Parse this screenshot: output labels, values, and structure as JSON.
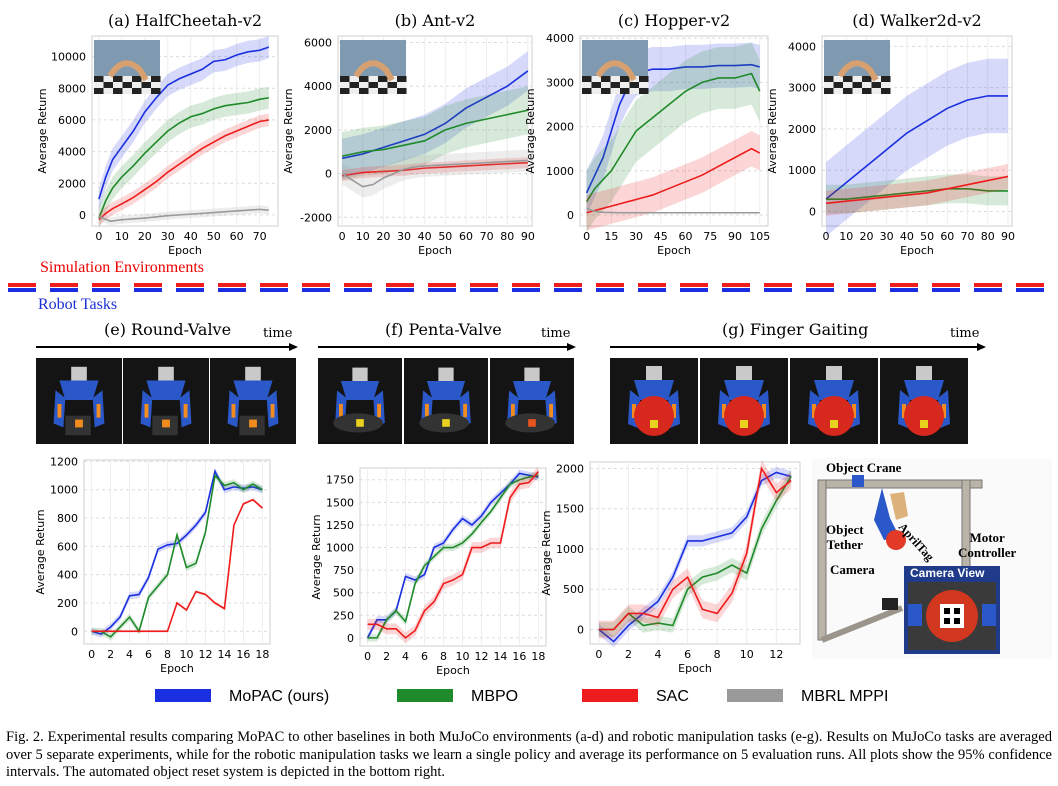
{
  "figure": {
    "section_sim": "Simulation Environments",
    "section_robot": "Robot Tasks",
    "time_label": "time",
    "legend": [
      {
        "name": "MoPAC (ours)",
        "color": "#1a2fe0"
      },
      {
        "name": "MBPO",
        "color": "#1f8a2a"
      },
      {
        "name": "SAC",
        "color": "#ee1c1c"
      },
      {
        "name": "MBRL MPPI",
        "color": "#9a9a9a"
      }
    ],
    "caption": "Fig. 2.   Experimental results comparing MoPAC to other baselines in both MuJoCo environments (a-d) and robotic manipulation tasks (e-g). Results on MuJoCo tasks are averaged over 5 separate experiments, while for the robotic manipulation tasks we learn a single policy and average its performance on 5 evaluation runs. All plots show the 95% confidence intervals. The automated object reset system is depicted in the bottom right.",
    "setup_labels": {
      "crane": "Object Crane",
      "tether": "Object\nTether",
      "apriltag": "AprilTag",
      "motor": "Motor\nController",
      "camera": "Camera",
      "view": "Camera View"
    }
  },
  "chart_data": [
    {
      "type": "line",
      "title": "(a) HalfCheetah-v2",
      "xlabel": "Epoch",
      "ylabel": "Average Return",
      "xlim": [
        -3,
        78
      ],
      "ylim": [
        -700,
        11300
      ],
      "xticks": [
        0,
        10,
        20,
        30,
        40,
        50,
        60,
        70
      ],
      "yticks": [
        0,
        2000,
        4000,
        6000,
        8000,
        10000
      ],
      "grid": true,
      "series": [
        {
          "name": "MoPAC (ours)",
          "x": [
            0,
            3,
            6,
            10,
            15,
            20,
            25,
            30,
            35,
            40,
            45,
            50,
            55,
            60,
            65,
            70,
            74
          ],
          "y": [
            1000,
            2400,
            3500,
            4300,
            5300,
            6500,
            7400,
            8200,
            8600,
            8900,
            9200,
            9700,
            9800,
            10100,
            10300,
            10400,
            10600
          ],
          "band": 700
        },
        {
          "name": "MBPO",
          "x": [
            0,
            3,
            6,
            10,
            15,
            20,
            25,
            30,
            35,
            40,
            45,
            50,
            55,
            60,
            65,
            70,
            74
          ],
          "y": [
            -200,
            900,
            1700,
            2400,
            3100,
            3900,
            4600,
            5300,
            5800,
            6200,
            6400,
            6700,
            6900,
            7000,
            7100,
            7300,
            7400
          ],
          "band": 700
        },
        {
          "name": "SAC",
          "x": [
            0,
            3,
            6,
            10,
            15,
            20,
            25,
            30,
            35,
            40,
            45,
            50,
            55,
            60,
            65,
            70,
            74
          ],
          "y": [
            -300,
            100,
            400,
            700,
            1100,
            1600,
            2100,
            2700,
            3200,
            3700,
            4200,
            4600,
            5000,
            5300,
            5600,
            5900,
            6000
          ],
          "band": 400
        },
        {
          "name": "MBRL MPPI",
          "x": [
            0,
            5,
            10,
            20,
            30,
            40,
            50,
            60,
            70,
            74
          ],
          "y": [
            -100,
            -400,
            -300,
            -200,
            -50,
            50,
            150,
            250,
            350,
            300
          ],
          "band": 250
        }
      ]
    },
    {
      "type": "line",
      "title": "(b) Ant-v2",
      "xlabel": "Epoch",
      "ylabel": "Average Return",
      "xlim": [
        -2,
        92
      ],
      "ylim": [
        -2400,
        6300
      ],
      "xticks": [
        0,
        10,
        20,
        30,
        40,
        50,
        60,
        70,
        80,
        90
      ],
      "yticks": [
        -2000,
        0,
        2000,
        4000,
        6000
      ],
      "grid": true,
      "series": [
        {
          "name": "MoPAC (ours)",
          "x": [
            0,
            10,
            20,
            30,
            40,
            50,
            60,
            70,
            80,
            90
          ],
          "y": [
            700,
            900,
            1200,
            1500,
            1800,
            2300,
            3000,
            3500,
            4000,
            4700
          ],
          "band": 900
        },
        {
          "name": "MBPO",
          "x": [
            0,
            10,
            20,
            30,
            40,
            50,
            60,
            70,
            80,
            90
          ],
          "y": [
            800,
            1000,
            1100,
            1300,
            1500,
            2000,
            2300,
            2500,
            2700,
            2900
          ],
          "band": 1100
        },
        {
          "name": "SAC",
          "x": [
            0,
            10,
            20,
            30,
            40,
            50,
            60,
            70,
            80,
            90
          ],
          "y": [
            -100,
            50,
            100,
            150,
            250,
            300,
            350,
            400,
            450,
            500
          ],
          "band": 250
        },
        {
          "name": "MBRL MPPI",
          "x": [
            0,
            5,
            10,
            15,
            20,
            25,
            30,
            35,
            40,
            50,
            60,
            70,
            80,
            90
          ],
          "y": [
            0,
            -300,
            -600,
            -500,
            -200,
            0,
            200,
            300,
            350,
            400,
            450,
            500,
            550,
            600
          ],
          "band": 500
        }
      ]
    },
    {
      "type": "line",
      "title": "(c) Hopper-v2",
      "xlabel": "Epoch",
      "ylabel": "Average Return",
      "xlim": [
        -4,
        110
      ],
      "ylim": [
        -250,
        4050
      ],
      "xticks": [
        0,
        15,
        30,
        45,
        60,
        75,
        90,
        105
      ],
      "yticks": [
        0,
        1000,
        2000,
        3000,
        4000
      ],
      "grid": true,
      "series": [
        {
          "name": "MoPAC (ours)",
          "x": [
            0,
            5,
            10,
            15,
            20,
            25,
            30,
            40,
            50,
            60,
            70,
            80,
            90,
            100,
            105
          ],
          "y": [
            500,
            900,
            1300,
            1900,
            2500,
            2900,
            3200,
            3300,
            3300,
            3350,
            3350,
            3380,
            3380,
            3400,
            3350
          ],
          "band": 500
        },
        {
          "name": "MBPO",
          "x": [
            0,
            5,
            10,
            15,
            20,
            25,
            30,
            40,
            50,
            60,
            70,
            80,
            90,
            100,
            105
          ],
          "y": [
            300,
            600,
            800,
            1000,
            1300,
            1600,
            1900,
            2200,
            2500,
            2800,
            3000,
            3100,
            3100,
            3200,
            2800
          ],
          "band": 700
        },
        {
          "name": "SAC",
          "x": [
            0,
            5,
            10,
            15,
            20,
            25,
            30,
            40,
            50,
            60,
            70,
            80,
            90,
            100,
            105
          ],
          "y": [
            50,
            100,
            150,
            200,
            250,
            300,
            350,
            450,
            600,
            750,
            900,
            1100,
            1300,
            1500,
            1400
          ],
          "band": 400
        },
        {
          "name": "MBRL MPPI",
          "x": [
            0,
            5,
            10,
            20,
            30,
            45,
            60,
            75,
            90,
            105
          ],
          "y": [
            150,
            80,
            60,
            50,
            50,
            50,
            50,
            50,
            50,
            50
          ],
          "band": 20
        }
      ]
    },
    {
      "type": "line",
      "title": "(d) Walker2d-v2",
      "xlabel": "Epoch",
      "ylabel": "Average Return",
      "xlim": [
        -2,
        92
      ],
      "ylim": [
        -350,
        4250
      ],
      "xticks": [
        0,
        10,
        20,
        30,
        40,
        50,
        60,
        70,
        80,
        90
      ],
      "yticks": [
        0,
        1000,
        2000,
        3000,
        4000
      ],
      "grid": true,
      "series": [
        {
          "name": "MoPAC (ours)",
          "x": [
            0,
            10,
            20,
            30,
            40,
            50,
            60,
            70,
            80,
            90
          ],
          "y": [
            300,
            700,
            1100,
            1500,
            1900,
            2200,
            2500,
            2700,
            2800,
            2800
          ],
          "band": 900
        },
        {
          "name": "MBPO",
          "x": [
            0,
            10,
            20,
            30,
            40,
            50,
            60,
            70,
            80,
            90
          ],
          "y": [
            300,
            300,
            350,
            400,
            450,
            500,
            550,
            550,
            500,
            500
          ],
          "band": 350
        },
        {
          "name": "SAC",
          "x": [
            0,
            10,
            20,
            30,
            40,
            50,
            60,
            70,
            80,
            90
          ],
          "y": [
            200,
            250,
            300,
            350,
            400,
            450,
            550,
            650,
            750,
            850
          ],
          "band": 300
        }
      ]
    },
    {
      "type": "line",
      "title": "",
      "xlabel": "Epoch",
      "ylabel": "Average Return",
      "xlim": [
        -0.8,
        18.8
      ],
      "ylim": [
        -90,
        1210
      ],
      "xticks": [
        0,
        2,
        4,
        6,
        8,
        10,
        12,
        14,
        16,
        18
      ],
      "yticks": [
        0,
        200,
        400,
        600,
        800,
        1000,
        1200
      ],
      "grid": true,
      "series": [
        {
          "name": "MoPAC (ours)",
          "x": [
            0,
            1,
            2,
            3,
            4,
            5,
            6,
            7,
            8,
            9,
            10,
            11,
            12,
            13,
            14,
            15,
            16,
            17,
            18
          ],
          "y": [
            0,
            -20,
            30,
            100,
            250,
            260,
            380,
            580,
            610,
            620,
            680,
            750,
            840,
            1130,
            1000,
            1020,
            1010,
            1020,
            1000
          ],
          "band": 25
        },
        {
          "name": "MBPO",
          "x": [
            0,
            1,
            2,
            3,
            4,
            5,
            6,
            7,
            8,
            9,
            10,
            11,
            12,
            13,
            14,
            15,
            16,
            17,
            18
          ],
          "y": [
            0,
            0,
            -40,
            30,
            100,
            0,
            240,
            320,
            400,
            680,
            450,
            480,
            700,
            1100,
            1030,
            1050,
            1000,
            1040,
            1000
          ],
          "band": 25
        },
        {
          "name": "SAC",
          "x": [
            0,
            1,
            2,
            3,
            4,
            5,
            6,
            7,
            8,
            9,
            10,
            11,
            12,
            13,
            14,
            15,
            16,
            17,
            18
          ],
          "y": [
            0,
            0,
            0,
            0,
            0,
            0,
            0,
            0,
            0,
            200,
            150,
            280,
            260,
            200,
            160,
            750,
            900,
            930,
            870
          ],
          "band": 10
        }
      ]
    },
    {
      "type": "line",
      "title": "",
      "xlabel": "Epoch",
      "ylabel": "Average Return",
      "xlim": [
        -0.8,
        18.8
      ],
      "ylim": [
        -90,
        1880
      ],
      "xticks": [
        0,
        2,
        4,
        6,
        8,
        10,
        12,
        14,
        16,
        18
      ],
      "yticks": [
        0,
        250,
        500,
        750,
        1000,
        1250,
        1500,
        1750
      ],
      "grid": true,
      "series": [
        {
          "name": "MoPAC (ours)",
          "x": [
            0,
            1,
            2,
            3,
            4,
            5,
            6,
            7,
            8,
            9,
            10,
            11,
            12,
            13,
            14,
            15,
            16,
            17,
            18
          ],
          "y": [
            0,
            200,
            200,
            300,
            680,
            640,
            700,
            1000,
            1050,
            1200,
            1320,
            1250,
            1350,
            1500,
            1600,
            1700,
            1820,
            1800,
            1780
          ],
          "band": 40
        },
        {
          "name": "MBPO",
          "x": [
            0,
            1,
            2,
            3,
            4,
            5,
            6,
            7,
            8,
            9,
            10,
            11,
            12,
            13,
            14,
            15,
            16,
            17,
            18
          ],
          "y": [
            0,
            0,
            200,
            300,
            180,
            600,
            800,
            900,
            1000,
            1000,
            1050,
            1150,
            1280,
            1400,
            1550,
            1700,
            1750,
            1780,
            1800
          ],
          "band": 40
        },
        {
          "name": "SAC",
          "x": [
            0,
            1,
            2,
            3,
            4,
            5,
            6,
            7,
            8,
            9,
            10,
            11,
            12,
            13,
            14,
            15,
            16,
            17,
            18
          ],
          "y": [
            150,
            150,
            100,
            100,
            0,
            80,
            300,
            400,
            600,
            640,
            700,
            1000,
            1000,
            1050,
            1050,
            1550,
            1700,
            1720,
            1840
          ],
          "band": 60
        }
      ]
    },
    {
      "type": "line",
      "title": "",
      "xlabel": "Epoch",
      "ylabel": "Average Return",
      "xlim": [
        -0.6,
        13.6
      ],
      "ylim": [
        -180,
        2080
      ],
      "xticks": [
        0,
        2,
        4,
        6,
        8,
        10,
        12
      ],
      "yticks": [
        0,
        500,
        1000,
        1500,
        2000
      ],
      "grid": true,
      "series": [
        {
          "name": "MoPAC (ours)",
          "x": [
            0,
            1,
            2,
            3,
            4,
            5,
            6,
            7,
            8,
            9,
            10,
            11,
            12,
            13
          ],
          "y": [
            0,
            -150,
            50,
            200,
            350,
            650,
            1100,
            1100,
            1150,
            1200,
            1400,
            1850,
            1950,
            1900
          ],
          "band": 70
        },
        {
          "name": "MBPO",
          "x": [
            0,
            1,
            2,
            3,
            4,
            5,
            6,
            7,
            8,
            9,
            10,
            11,
            12,
            13
          ],
          "y": [
            0,
            0,
            200,
            50,
            80,
            50,
            500,
            650,
            700,
            800,
            700,
            1250,
            1600,
            1900
          ],
          "band": 90
        },
        {
          "name": "SAC",
          "x": [
            0,
            1,
            2,
            3,
            4,
            5,
            6,
            7,
            8,
            9,
            10,
            11,
            12,
            13
          ],
          "y": [
            0,
            0,
            200,
            200,
            150,
            500,
            650,
            250,
            200,
            450,
            950,
            2000,
            1700,
            1850
          ],
          "band": 110
        }
      ]
    }
  ]
}
